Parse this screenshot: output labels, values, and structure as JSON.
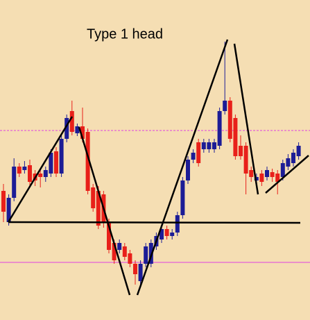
{
  "chart_data": {
    "type": "candlestick",
    "title": "Type 1 head",
    "open": [
      186,
      141,
      176,
      221,
      216,
      223,
      211,
      211,
      206,
      211,
      243,
      211,
      261,
      301,
      269,
      279,
      271,
      191,
      186,
      181,
      141,
      111,
      101,
      106,
      96,
      81,
      56,
      81,
      81,
      106,
      116,
      131,
      121,
      126,
      151,
      201,
      231,
      256,
      246,
      246,
      246,
      251,
      301,
      316,
      291,
      251,
      251,
      216,
      201,
      211,
      206,
      213,
      211,
      206,
      221,
      226,
      236
    ],
    "high": [
      196,
      181,
      233,
      226,
      229,
      231,
      216,
      216,
      221,
      246,
      249,
      266,
      296,
      316,
      283,
      306,
      276,
      196,
      193,
      186,
      146,
      116,
      116,
      111,
      101,
      86,
      86,
      111,
      116,
      126,
      136,
      136,
      131,
      156,
      206,
      236,
      246,
      261,
      261,
      261,
      261,
      306,
      401,
      321,
      296,
      266,
      256,
      221,
      211,
      216,
      221,
      218,
      216,
      231,
      239,
      246,
      256
    ],
    "low": [
      141,
      136,
      171,
      206,
      211,
      191,
      193,
      191,
      199,
      206,
      206,
      206,
      256,
      266,
      265,
      256,
      181,
      156,
      131,
      133,
      96,
      81,
      96,
      86,
      76,
      51,
      51,
      76,
      76,
      101,
      111,
      116,
      116,
      121,
      146,
      196,
      226,
      221,
      241,
      241,
      241,
      246,
      296,
      256,
      231,
      231,
      181,
      199,
      196,
      193,
      201,
      199,
      181,
      201,
      216,
      221,
      231
    ],
    "close": [
      156,
      176,
      221,
      211,
      221,
      199,
      201,
      206,
      216,
      241,
      211,
      261,
      291,
      271,
      279,
      261,
      186,
      161,
      136,
      141,
      101,
      86,
      111,
      91,
      81,
      66,
      81,
      106,
      111,
      121,
      131,
      121,
      126,
      151,
      201,
      231,
      241,
      226,
      256,
      256,
      256,
      301,
      316,
      261,
      236,
      236,
      211,
      206,
      206,
      199,
      216,
      206,
      199,
      226,
      233,
      241,
      251
    ],
    "up_color": "#1c1c96",
    "down_color": "#e8201a",
    "ylim": [
      0,
      461
    ]
  }
}
